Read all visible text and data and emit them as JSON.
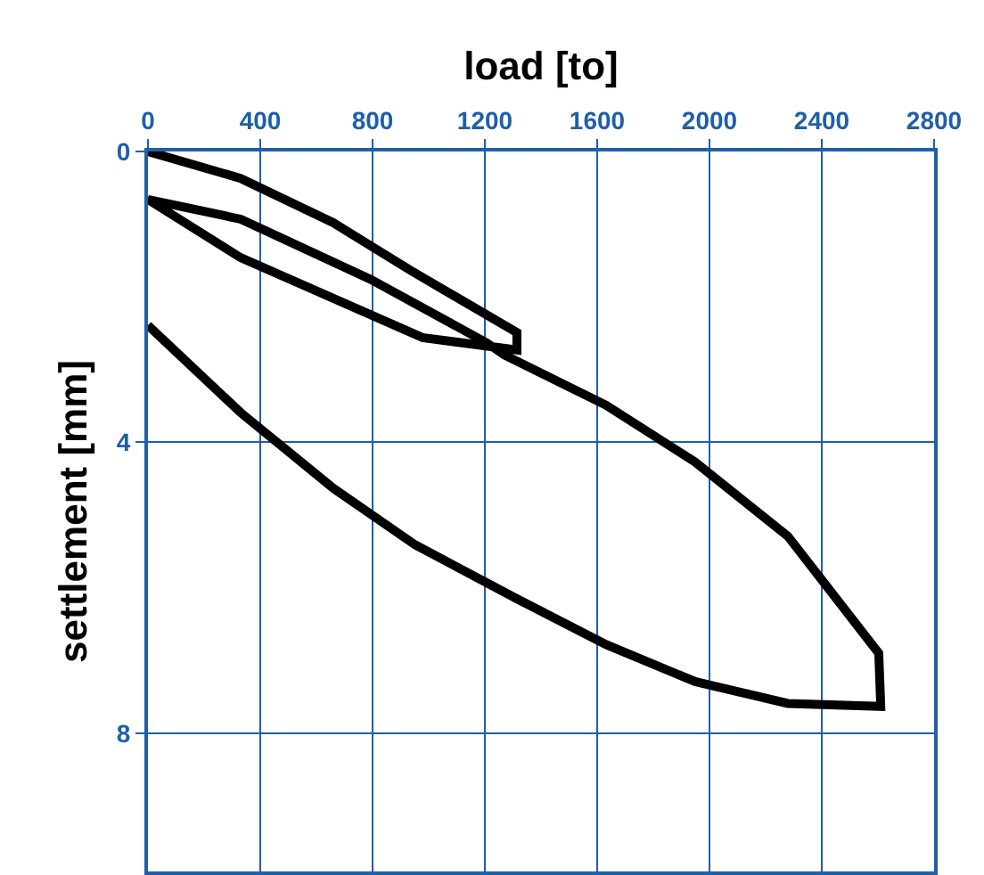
{
  "chart_data": {
    "type": "line",
    "title": "load [to]",
    "ylabel": "settlement [mm]",
    "series": [
      {
        "color": "#000000",
        "x": [
          0,
          330,
          660,
          933,
          1314,
          1314,
          978,
          330,
          0,
          330,
          794,
          1206,
          1270,
          1632,
          1949,
          2279,
          2603,
          2610,
          2279,
          1949,
          1632,
          1314,
          952,
          660,
          330,
          0
        ],
        "values": [
          0,
          0.37,
          0.98,
          1.63,
          2.49,
          2.73,
          2.56,
          1.46,
          0.66,
          0.93,
          1.76,
          2.63,
          2.8,
          3.49,
          4.27,
          5.29,
          6.9,
          7.63,
          7.59,
          7.29,
          6.78,
          6.15,
          5.41,
          4.63,
          3.59,
          2.39
        ]
      }
    ],
    "xlim": [
      0,
      2800
    ],
    "xticks": [
      0,
      400,
      800,
      1200,
      1600,
      2000,
      2400,
      2800
    ],
    "ylim": [
      9.9,
      0
    ],
    "yticks": [
      0,
      4,
      8
    ],
    "grid": true,
    "marker": "none",
    "line_style": "solid"
  }
}
